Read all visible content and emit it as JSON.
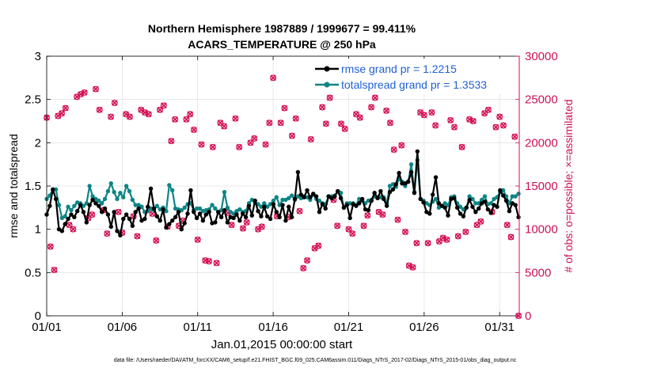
{
  "chart_data": {
    "type": "line",
    "title_line1": "Northern Hemisphere 1987889 / 1999677 = 99.411%",
    "title_line2": "ACARS_TEMPERATURE @ 250 hPa",
    "xlabel": "Jan.01,2015 00:00:00 start",
    "ylabel": "rmse and totalspread",
    "ylabel_right": "# of obs: o=possible; ×=assimilated",
    "footnote": "data file: /Users/raeder/DAI/ATM_forcXX/CAM6_setup/f.e21.FHIST_BGC.f09_025.CAM6assim.011/Diags_NTrS_2017-02/Diags_NTrS_2015-01/obs_diag_output.nc",
    "x_range": [
      1,
      32.3
    ],
    "ylim": [
      0,
      3
    ],
    "ylim_right": [
      0,
      30000
    ],
    "x_ticks": [
      1,
      6,
      11,
      16,
      21,
      26,
      31
    ],
    "x_tick_labels": [
      "01/01",
      "01/06",
      "01/11",
      "01/16",
      "01/21",
      "01/26",
      "01/31"
    ],
    "y_ticks": [
      0,
      0.5,
      1,
      1.5,
      2,
      2.5,
      3
    ],
    "y_tick_labels": [
      "0",
      "0.5",
      "1",
      "1.5",
      "2",
      "2.5",
      "3"
    ],
    "y_right_ticks": [
      0,
      5000,
      10000,
      15000,
      20000,
      25000,
      30000
    ],
    "y_right_tick_labels": [
      "0",
      "5000",
      "10000",
      "15000",
      "20000",
      "25000",
      "30000"
    ],
    "grid": true,
    "legend_position": "top-right",
    "series": [
      {
        "name": "rmse grand pr = 1.2215",
        "color": "#000000",
        "values": [
          1.17,
          1.27,
          1.46,
          1.35,
          1.0,
          0.98,
          1.06,
          1.12,
          1.17,
          1.14,
          1.21,
          1.28,
          1.2,
          1.08,
          1.28,
          1.34,
          1.3,
          1.27,
          1.2,
          1.24,
          1.17,
          1.03,
          1.2,
          0.98,
          0.93,
          1.12,
          1.17,
          1.12,
          1.04,
          1.2,
          1.24,
          1.1,
          1.12,
          1.26,
          1.47,
          1.24,
          1.15,
          1.1,
          1.23,
          1.02,
          1.06,
          1.1,
          1.14,
          1.2,
          1.0,
          1.07,
          1.18,
          1.45,
          1.2,
          1.13,
          1.18,
          1.1,
          1.17,
          1.2,
          1.07,
          1.08,
          1.2,
          1.14,
          1.22,
          1.08,
          1.14,
          1.13,
          1.17,
          1.1,
          1.18,
          1.14,
          1.27,
          1.16,
          1.33,
          1.21,
          1.15,
          1.26,
          1.15,
          1.12,
          1.29,
          1.2,
          1.14,
          1.28,
          1.1,
          1.26,
          1.14,
          1.35,
          1.66,
          1.4,
          1.37,
          1.45,
          1.37,
          1.41,
          1.38,
          1.2,
          1.29,
          1.24,
          1.38,
          1.36,
          1.38,
          1.44,
          1.36,
          1.25,
          1.28,
          1.13,
          1.29,
          1.27,
          1.3,
          1.35,
          1.23,
          1.22,
          1.33,
          1.42,
          1.36,
          1.44,
          1.35,
          1.27,
          1.43,
          1.46,
          1.52,
          1.65,
          1.53,
          1.53,
          1.55,
          1.66,
          1.42,
          1.9,
          1.35,
          1.31,
          1.2,
          1.18,
          1.4,
          1.6,
          1.3,
          1.27,
          1.25,
          1.16,
          1.35,
          1.36,
          1.25,
          1.18,
          1.15,
          1.25,
          1.34,
          1.26,
          1.2,
          1.24,
          1.3,
          1.32,
          1.23,
          1.19,
          1.28,
          1.26,
          1.45,
          1.39,
          1.33,
          1.21,
          1.3,
          1.28,
          1.14
        ]
      },
      {
        "name": "totalspread grand pr = 1.3533",
        "color": "#0e8585",
        "values": [
          1.35,
          1.39,
          1.46,
          1.46,
          1.28,
          1.13,
          1.15,
          1.26,
          1.22,
          1.27,
          1.31,
          1.3,
          1.27,
          1.3,
          1.5,
          1.38,
          1.35,
          1.33,
          1.3,
          1.35,
          1.44,
          1.53,
          1.43,
          1.35,
          1.42,
          1.37,
          1.5,
          1.44,
          1.34,
          1.28,
          1.28,
          1.26,
          1.2,
          1.21,
          1.24,
          1.22,
          1.27,
          1.23,
          1.25,
          1.21,
          1.51,
          1.45,
          1.24,
          1.23,
          1.22,
          1.25,
          1.29,
          1.3,
          1.22,
          1.24,
          1.24,
          1.21,
          1.22,
          1.23,
          1.28,
          1.24,
          1.2,
          1.22,
          1.43,
          1.25,
          1.2,
          1.18,
          1.21,
          1.23,
          1.2,
          1.21,
          1.3,
          1.34,
          1.31,
          1.29,
          1.26,
          1.3,
          1.26,
          1.29,
          1.33,
          1.37,
          1.28,
          1.34,
          1.34,
          1.36,
          1.39,
          1.34,
          1.38,
          1.36,
          1.38,
          1.37,
          1.34,
          1.4,
          1.35,
          1.33,
          1.3,
          1.29,
          1.38,
          1.38,
          1.39,
          1.44,
          1.42,
          1.25,
          1.3,
          1.3,
          1.3,
          1.28,
          1.35,
          1.33,
          1.3,
          1.33,
          1.34,
          1.38,
          1.37,
          1.37,
          1.37,
          1.3,
          1.5,
          1.52,
          1.49,
          1.58,
          1.55,
          1.5,
          1.55,
          1.75,
          1.43,
          1.8,
          1.35,
          1.33,
          1.3,
          1.28,
          1.32,
          1.35,
          1.25,
          1.27,
          1.3,
          1.28,
          1.37,
          1.38,
          1.3,
          1.26,
          1.23,
          1.25,
          1.38,
          1.35,
          1.3,
          1.3,
          1.34,
          1.38,
          1.29,
          1.3,
          1.35,
          1.37,
          1.43,
          1.45,
          1.38,
          1.3,
          1.38,
          1.38,
          1.41
        ]
      }
    ],
    "obs_series": {
      "name": "# of obs (possible / assimilated)",
      "color": "#d41155",
      "points": [
        {
          "x": 1.0,
          "y": 22900
        },
        {
          "x": 1.25,
          "y": 8000
        },
        {
          "x": 1.5,
          "y": 5300
        },
        {
          "x": 1.75,
          "y": 23100
        },
        {
          "x": 2.0,
          "y": 23400
        },
        {
          "x": 2.25,
          "y": 24000
        },
        {
          "x": 2.5,
          "y": 10500
        },
        {
          "x": 2.75,
          "y": 10000
        },
        {
          "x": 3.0,
          "y": 25300
        },
        {
          "x": 3.25,
          "y": 25600
        },
        {
          "x": 3.5,
          "y": 25800
        },
        {
          "x": 3.75,
          "y": 11300
        },
        {
          "x": 4.0,
          "y": 11700
        },
        {
          "x": 4.25,
          "y": 26200
        },
        {
          "x": 4.5,
          "y": 23800
        },
        {
          "x": 4.75,
          "y": 12200
        },
        {
          "x": 5.0,
          "y": 9500
        },
        {
          "x": 5.25,
          "y": 23000
        },
        {
          "x": 5.5,
          "y": 24600
        },
        {
          "x": 5.75,
          "y": 12000
        },
        {
          "x": 6.0,
          "y": 9600
        },
        {
          "x": 6.25,
          "y": 23300
        },
        {
          "x": 6.5,
          "y": 23000
        },
        {
          "x": 6.75,
          "y": 11500
        },
        {
          "x": 7.0,
          "y": 9200
        },
        {
          "x": 7.25,
          "y": 23800
        },
        {
          "x": 7.5,
          "y": 23500
        },
        {
          "x": 7.75,
          "y": 23300
        },
        {
          "x": 8.0,
          "y": 11800
        },
        {
          "x": 8.25,
          "y": 8700
        },
        {
          "x": 8.5,
          "y": 23800
        },
        {
          "x": 8.75,
          "y": 24300
        },
        {
          "x": 9.0,
          "y": 10300
        },
        {
          "x": 9.25,
          "y": 20200
        },
        {
          "x": 9.5,
          "y": 22700
        },
        {
          "x": 9.75,
          "y": 10400
        },
        {
          "x": 10.0,
          "y": 11000
        },
        {
          "x": 10.25,
          "y": 22700
        },
        {
          "x": 10.5,
          "y": 23300
        },
        {
          "x": 10.75,
          "y": 21500
        },
        {
          "x": 11.0,
          "y": 8800
        },
        {
          "x": 11.25,
          "y": 19800
        },
        {
          "x": 11.5,
          "y": 6400
        },
        {
          "x": 11.75,
          "y": 6300
        },
        {
          "x": 12.0,
          "y": 19500
        },
        {
          "x": 12.25,
          "y": 6100
        },
        {
          "x": 12.5,
          "y": 22300
        },
        {
          "x": 12.75,
          "y": 21900
        },
        {
          "x": 13.0,
          "y": 11900
        },
        {
          "x": 13.25,
          "y": 10500
        },
        {
          "x": 13.5,
          "y": 22800
        },
        {
          "x": 13.75,
          "y": 19500
        },
        {
          "x": 14.0,
          "y": 10100
        },
        {
          "x": 14.25,
          "y": 10800
        },
        {
          "x": 14.5,
          "y": 20000
        },
        {
          "x": 14.75,
          "y": 20500
        },
        {
          "x": 15.0,
          "y": 10000
        },
        {
          "x": 15.25,
          "y": 10300
        },
        {
          "x": 15.5,
          "y": 19800
        },
        {
          "x": 15.75,
          "y": 22300
        },
        {
          "x": 16.0,
          "y": 27500
        },
        {
          "x": 16.25,
          "y": 11500
        },
        {
          "x": 16.5,
          "y": 22300
        },
        {
          "x": 16.75,
          "y": 24000
        },
        {
          "x": 17.0,
          "y": 11400
        },
        {
          "x": 17.25,
          "y": 20800
        },
        {
          "x": 17.5,
          "y": 22800
        },
        {
          "x": 17.75,
          "y": 12100
        },
        {
          "x": 18.0,
          "y": 5500
        },
        {
          "x": 18.25,
          "y": 6400
        },
        {
          "x": 18.5,
          "y": 20400
        },
        {
          "x": 18.75,
          "y": 7800
        },
        {
          "x": 19.0,
          "y": 8100
        },
        {
          "x": 19.25,
          "y": 24100
        },
        {
          "x": 19.5,
          "y": 22200
        },
        {
          "x": 19.75,
          "y": 25200
        },
        {
          "x": 20.0,
          "y": 13400
        },
        {
          "x": 20.25,
          "y": 10400
        },
        {
          "x": 20.5,
          "y": 22200
        },
        {
          "x": 20.75,
          "y": 21600
        },
        {
          "x": 21.0,
          "y": 10000
        },
        {
          "x": 21.25,
          "y": 9500
        },
        {
          "x": 21.5,
          "y": 23300
        },
        {
          "x": 21.75,
          "y": 22900
        },
        {
          "x": 22.0,
          "y": 10400
        },
        {
          "x": 22.25,
          "y": 11600
        },
        {
          "x": 22.5,
          "y": 24100
        },
        {
          "x": 22.75,
          "y": 25200
        },
        {
          "x": 23.0,
          "y": 12000
        },
        {
          "x": 23.25,
          "y": 11700
        },
        {
          "x": 23.5,
          "y": 23700
        },
        {
          "x": 23.75,
          "y": 22300
        },
        {
          "x": 24.0,
          "y": 19200
        },
        {
          "x": 24.25,
          "y": 11100
        },
        {
          "x": 24.5,
          "y": 19700
        },
        {
          "x": 24.75,
          "y": 9700
        },
        {
          "x": 25.0,
          "y": 5800
        },
        {
          "x": 25.25,
          "y": 5600
        },
        {
          "x": 25.5,
          "y": 8400
        },
        {
          "x": 25.75,
          "y": 23500
        },
        {
          "x": 26.0,
          "y": 23200
        },
        {
          "x": 26.25,
          "y": 8400
        },
        {
          "x": 26.5,
          "y": 23500
        },
        {
          "x": 26.75,
          "y": 22000
        },
        {
          "x": 27.0,
          "y": 8600
        },
        {
          "x": 27.25,
          "y": 9000
        },
        {
          "x": 27.5,
          "y": 8800
        },
        {
          "x": 27.75,
          "y": 22600
        },
        {
          "x": 28.0,
          "y": 21800
        },
        {
          "x": 28.25,
          "y": 9200
        },
        {
          "x": 28.5,
          "y": 19500
        },
        {
          "x": 28.75,
          "y": 9700
        },
        {
          "x": 29.0,
          "y": 22700
        },
        {
          "x": 29.25,
          "y": 22500
        },
        {
          "x": 29.5,
          "y": 10500
        },
        {
          "x": 29.75,
          "y": 10900
        },
        {
          "x": 30.0,
          "y": 23400
        },
        {
          "x": 30.25,
          "y": 23800
        },
        {
          "x": 30.5,
          "y": 12000
        },
        {
          "x": 30.75,
          "y": 21800
        },
        {
          "x": 31.0,
          "y": 23000
        },
        {
          "x": 31.25,
          "y": 22000
        },
        {
          "x": 31.5,
          "y": 10500
        },
        {
          "x": 31.75,
          "y": 9100
        },
        {
          "x": 32.0,
          "y": 20700
        },
        {
          "x": 32.25,
          "y": 0
        }
      ]
    }
  }
}
